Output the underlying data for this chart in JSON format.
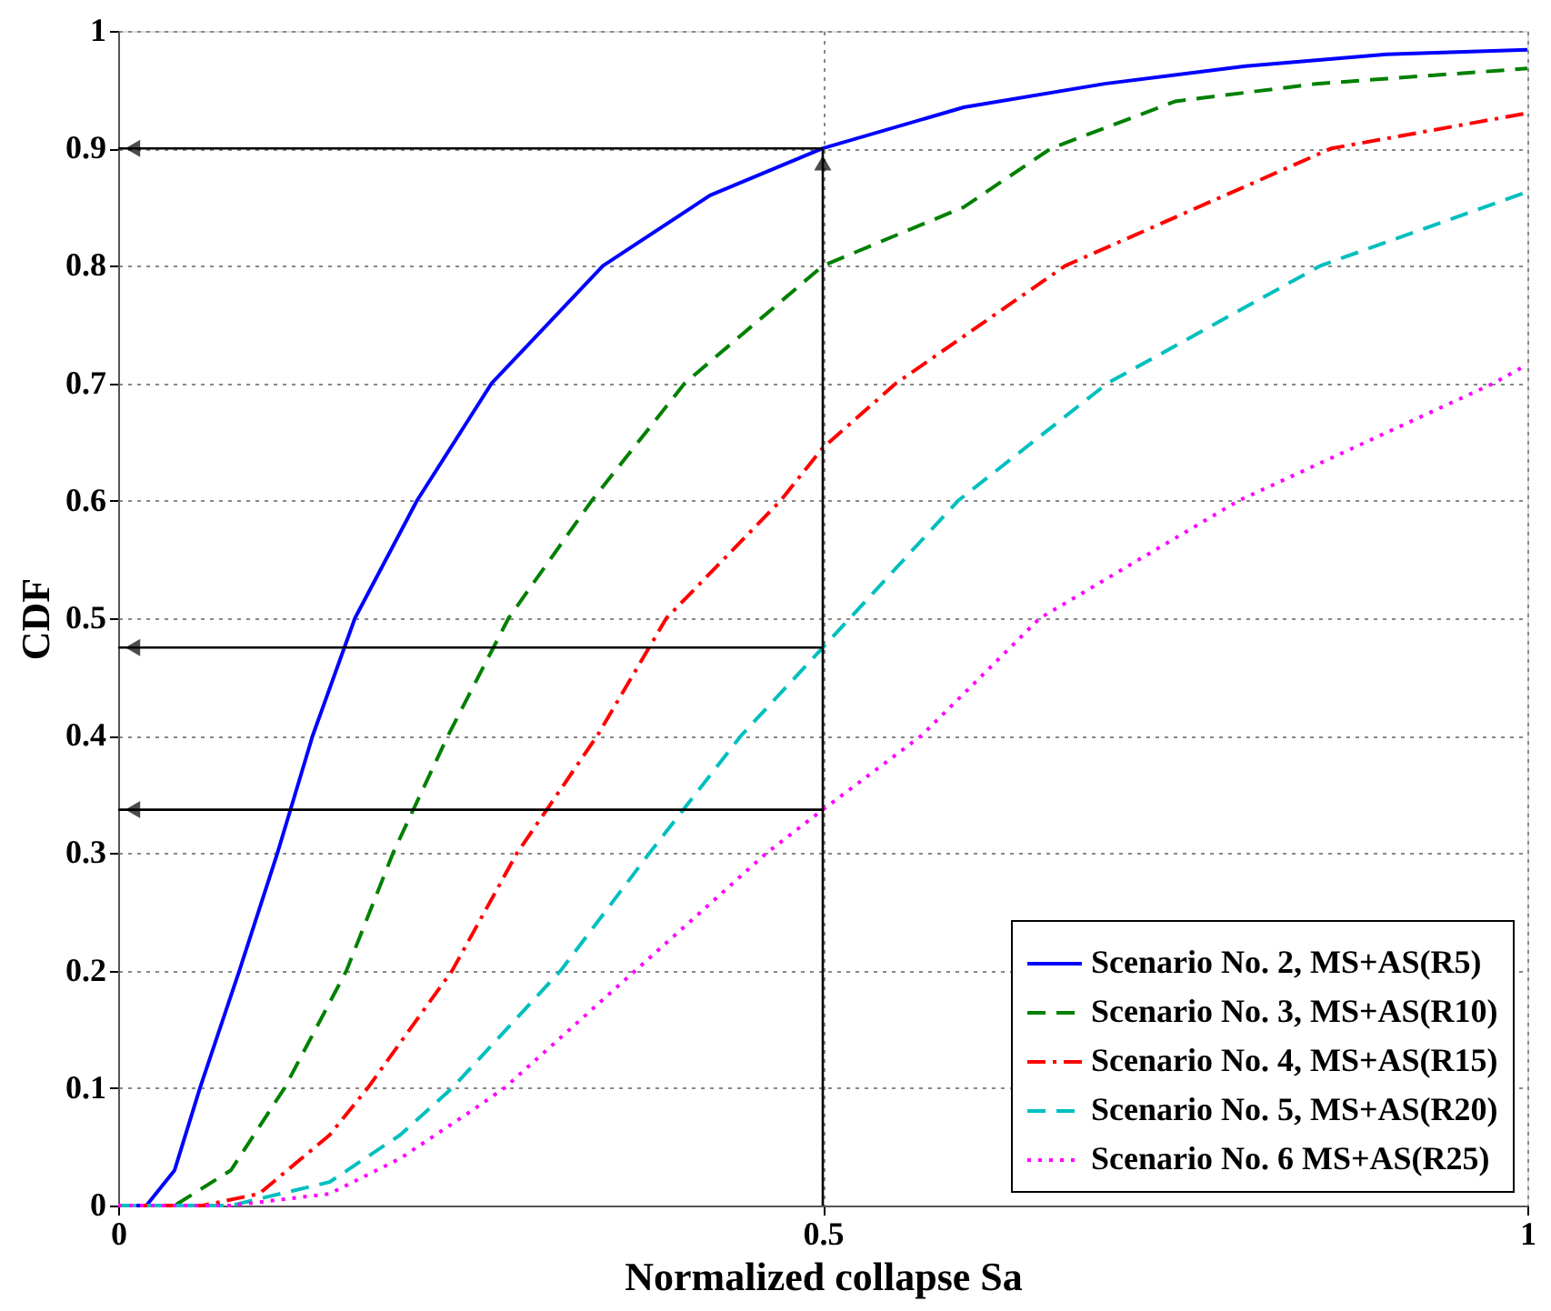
{
  "chart_data": {
    "type": "line",
    "xlabel": "Normalized collapse Sa",
    "ylabel": "CDF",
    "xlim": [
      0,
      1
    ],
    "xticks": [
      0,
      0.5,
      1
    ],
    "ylim": [
      0,
      1
    ],
    "yticks": [
      0,
      0.1,
      0.2,
      0.3,
      0.4,
      0.5,
      0.6,
      0.7,
      0.8,
      0.9,
      1
    ],
    "grid": true,
    "legend": "bottom right",
    "marker": "none",
    "ref_lines": [
      {
        "axis": "x",
        "value": 0.5,
        "label": null,
        "color": "#000000"
      },
      {
        "axis": "y",
        "value": 0.9,
        "label": null,
        "color": "#000000"
      },
      {
        "axis": "y",
        "value": 0.475,
        "label": null,
        "color": "#000000"
      },
      {
        "axis": "y",
        "value": 0.337,
        "label": null,
        "color": "#000000"
      }
    ],
    "series": [
      {
        "name": "Scenario No. 2, MS+AS(R5)",
        "color": "#0000ff",
        "line_style": "solid",
        "x": [
          0,
          0.02,
          0.04,
          0.058,
          0.086,
          0.113,
          0.138,
          0.168,
          0.212,
          0.265,
          0.344,
          0.42,
          0.5,
          0.6,
          0.7,
          0.8,
          0.9,
          1
        ],
        "values": [
          0,
          0,
          0.03,
          0.1,
          0.2,
          0.3,
          0.4,
          0.5,
          0.6,
          0.7,
          0.8,
          0.86,
          0.9,
          0.935,
          0.955,
          0.97,
          0.98,
          0.984
        ]
      },
      {
        "name": "Scenario No. 3, MS+AS(R10)",
        "color": "#008000",
        "line_style": "dashed",
        "x": [
          0,
          0.04,
          0.08,
          0.118,
          0.162,
          0.195,
          0.234,
          0.277,
          0.336,
          0.402,
          0.5,
          0.6,
          0.662,
          0.75,
          0.85,
          1
        ],
        "values": [
          0,
          0,
          0.03,
          0.1,
          0.2,
          0.3,
          0.4,
          0.5,
          0.6,
          0.7,
          0.8,
          0.85,
          0.9,
          0.94,
          0.955,
          0.968
        ]
      },
      {
        "name": "Scenario No. 4, MS+AS(R15)",
        "color": "#ff0000",
        "line_style": "dashdot",
        "x": [
          0,
          0.06,
          0.1,
          0.15,
          0.177,
          0.237,
          0.283,
          0.34,
          0.389,
          0.47,
          0.5,
          0.552,
          0.672,
          0.861,
          1
        ],
        "values": [
          0,
          0,
          0.01,
          0.06,
          0.1,
          0.2,
          0.3,
          0.4,
          0.5,
          0.6,
          0.645,
          0.7,
          0.8,
          0.9,
          0.93
        ]
      },
      {
        "name": "Scenario No. 5, MS+AS(R20)",
        "color": "#00bfbf",
        "line_style": "dashed",
        "x": [
          0,
          0.08,
          0.15,
          0.2,
          0.237,
          0.314,
          0.377,
          0.442,
          0.5,
          0.596,
          0.702,
          0.853,
          1
        ],
        "values": [
          0,
          0,
          0.02,
          0.06,
          0.1,
          0.2,
          0.3,
          0.4,
          0.475,
          0.6,
          0.7,
          0.8,
          0.863
        ]
      },
      {
        "name": "Scenario No. 6 MS+AS(R25)",
        "color": "#ff00ff",
        "line_style": "dotted",
        "x": [
          0,
          0.08,
          0.15,
          0.2,
          0.25,
          0.274,
          0.367,
          0.46,
          0.5,
          0.57,
          0.654,
          0.795,
          0.976,
          1
        ],
        "values": [
          0,
          0,
          0.01,
          0.04,
          0.08,
          0.1,
          0.2,
          0.3,
          0.337,
          0.4,
          0.5,
          0.6,
          0.7,
          0.716
        ]
      }
    ]
  }
}
